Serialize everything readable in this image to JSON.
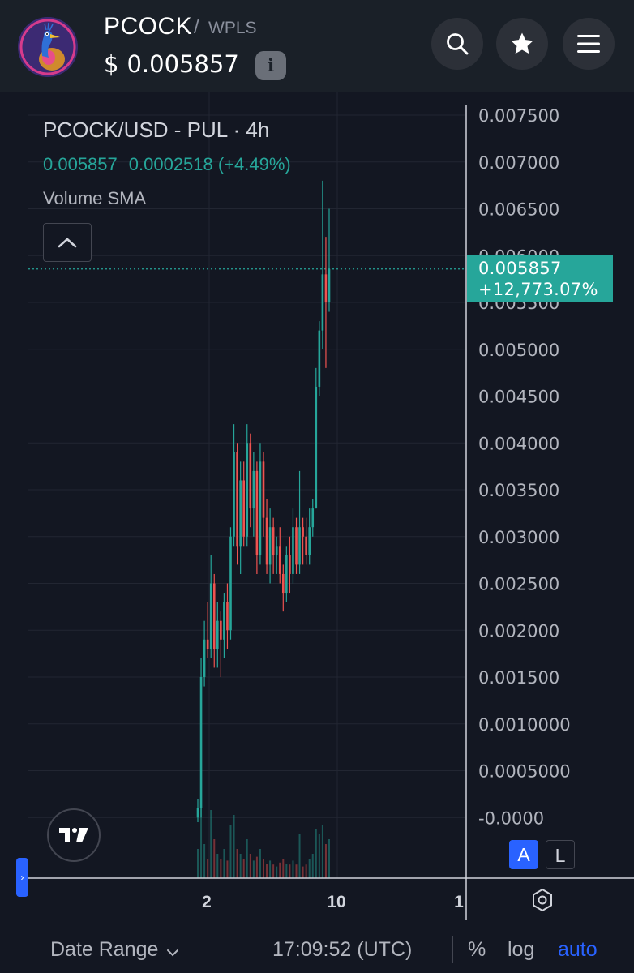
{
  "header": {
    "symbol": "PCOCK",
    "separator": "/",
    "quote": "WPLS",
    "currency": "$",
    "price": "0.005857",
    "info_icon": "i"
  },
  "icons": {
    "search": "search-icon",
    "favorite": "star-icon",
    "menu": "hamburger-menu-icon",
    "collapse": "chevron-up-icon",
    "logo": "tradingview-logo-icon",
    "settings": "hexagon-settings-icon",
    "date_range": "chevron-down-icon"
  },
  "legend": {
    "title": "PCOCK/USD - PUL · 4h",
    "close": "0.005857",
    "change": "0.0002518 (+4.49%)",
    "volume": "Volume SMA"
  },
  "price_tag": {
    "price": "0.005857",
    "change_pct": "+12,773.07%"
  },
  "scale_buttons": {
    "auto": "A",
    "lock": "L"
  },
  "side_tab": "›",
  "toolbar": {
    "date_range": "Date Range",
    "clock": "17:09:52 (UTC)",
    "percent": "%",
    "log": "log",
    "auto": "auto"
  },
  "colors": {
    "up": "#26a69a",
    "down": "#ef5350",
    "background": "#131722",
    "accent": "#2962ff"
  },
  "chart_data": {
    "type": "candlestick",
    "title": "PCOCK/USD - PUL · 4h",
    "y_ticks": [
      "0.007500",
      "0.007000",
      "0.006500",
      "0.006000",
      "0.005500",
      "0.005000",
      "0.004500",
      "0.004000",
      "0.003500",
      "0.003000",
      "0.002500",
      "0.002000",
      "0.001500",
      "0.0010000",
      "0.0005000",
      "-0.0000"
    ],
    "x_ticks": [
      "2",
      "10",
      "1"
    ],
    "ylim": [
      -6e-05,
      0.0077
    ],
    "last_price": 0.005857,
    "candles": [
      {
        "o": 0.0,
        "h": 0.0002,
        "l": -5e-05,
        "c": 0.0001,
        "v": 0.3
      },
      {
        "o": 0.0001,
        "h": 0.0017,
        "l": 0.0,
        "c": 0.0015,
        "v": 0.75
      },
      {
        "o": 0.0015,
        "h": 0.0021,
        "l": 0.0014,
        "c": 0.0019,
        "v": 0.35
      },
      {
        "o": 0.0019,
        "h": 0.0023,
        "l": 0.0017,
        "c": 0.0018,
        "v": 0.2
      },
      {
        "o": 0.0018,
        "h": 0.0028,
        "l": 0.0017,
        "c": 0.0025,
        "v": 0.7
      },
      {
        "o": 0.0025,
        "h": 0.0026,
        "l": 0.0016,
        "c": 0.0018,
        "v": 0.4
      },
      {
        "o": 0.0018,
        "h": 0.0023,
        "l": 0.0016,
        "c": 0.0021,
        "v": 0.25
      },
      {
        "o": 0.0021,
        "h": 0.0022,
        "l": 0.0015,
        "c": 0.0019,
        "v": 0.2
      },
      {
        "o": 0.0019,
        "h": 0.0024,
        "l": 0.0017,
        "c": 0.0023,
        "v": 0.3
      },
      {
        "o": 0.0023,
        "h": 0.0025,
        "l": 0.0018,
        "c": 0.002,
        "v": 0.18
      },
      {
        "o": 0.002,
        "h": 0.0031,
        "l": 0.0019,
        "c": 0.003,
        "v": 0.55
      },
      {
        "o": 0.003,
        "h": 0.0042,
        "l": 0.0029,
        "c": 0.0039,
        "v": 0.65
      },
      {
        "o": 0.0039,
        "h": 0.004,
        "l": 0.0027,
        "c": 0.0029,
        "v": 0.3
      },
      {
        "o": 0.0029,
        "h": 0.0038,
        "l": 0.0026,
        "c": 0.0036,
        "v": 0.25
      },
      {
        "o": 0.0036,
        "h": 0.0038,
        "l": 0.0029,
        "c": 0.003,
        "v": 0.2
      },
      {
        "o": 0.003,
        "h": 0.0042,
        "l": 0.0029,
        "c": 0.004,
        "v": 0.4
      },
      {
        "o": 0.004,
        "h": 0.0041,
        "l": 0.0031,
        "c": 0.0033,
        "v": 0.25
      },
      {
        "o": 0.0033,
        "h": 0.0039,
        "l": 0.003,
        "c": 0.0037,
        "v": 0.18
      },
      {
        "o": 0.0037,
        "h": 0.0038,
        "l": 0.0026,
        "c": 0.0028,
        "v": 0.22
      },
      {
        "o": 0.0028,
        "h": 0.004,
        "l": 0.0027,
        "c": 0.0038,
        "v": 0.3
      },
      {
        "o": 0.0038,
        "h": 0.0039,
        "l": 0.003,
        "c": 0.0032,
        "v": 0.2
      },
      {
        "o": 0.0032,
        "h": 0.0034,
        "l": 0.0026,
        "c": 0.0027,
        "v": 0.15
      },
      {
        "o": 0.0027,
        "h": 0.0033,
        "l": 0.0025,
        "c": 0.0031,
        "v": 0.18
      },
      {
        "o": 0.0031,
        "h": 0.0032,
        "l": 0.0026,
        "c": 0.0028,
        "v": 0.14
      },
      {
        "o": 0.0028,
        "h": 0.003,
        "l": 0.0026,
        "c": 0.0029,
        "v": 0.12
      },
      {
        "o": 0.0029,
        "h": 0.0031,
        "l": 0.0025,
        "c": 0.0026,
        "v": 0.16
      },
      {
        "o": 0.0026,
        "h": 0.0027,
        "l": 0.0022,
        "c": 0.0024,
        "v": 0.2
      },
      {
        "o": 0.0024,
        "h": 0.0029,
        "l": 0.0023,
        "c": 0.0028,
        "v": 0.15
      },
      {
        "o": 0.0028,
        "h": 0.003,
        "l": 0.0024,
        "c": 0.0026,
        "v": 0.14
      },
      {
        "o": 0.0026,
        "h": 0.0033,
        "l": 0.0025,
        "c": 0.0031,
        "v": 0.18
      },
      {
        "o": 0.0031,
        "h": 0.0032,
        "l": 0.0026,
        "c": 0.0027,
        "v": 0.14
      },
      {
        "o": 0.0027,
        "h": 0.0037,
        "l": 0.0026,
        "c": 0.0031,
        "v": 0.45
      },
      {
        "o": 0.0031,
        "h": 0.0032,
        "l": 0.0027,
        "c": 0.003,
        "v": 0.12
      },
      {
        "o": 0.003,
        "h": 0.0032,
        "l": 0.0027,
        "c": 0.0028,
        "v": 0.14
      },
      {
        "o": 0.0028,
        "h": 0.0033,
        "l": 0.0027,
        "c": 0.0031,
        "v": 0.2
      },
      {
        "o": 0.0031,
        "h": 0.0034,
        "l": 0.003,
        "c": 0.0033,
        "v": 0.25
      },
      {
        "o": 0.0033,
        "h": 0.0048,
        "l": 0.0033,
        "c": 0.0046,
        "v": 0.5
      },
      {
        "o": 0.0046,
        "h": 0.0053,
        "l": 0.0045,
        "c": 0.0052,
        "v": 0.45
      },
      {
        "o": 0.0052,
        "h": 0.0068,
        "l": 0.005,
        "c": 0.0058,
        "v": 0.55
      },
      {
        "o": 0.0058,
        "h": 0.0062,
        "l": 0.0048,
        "c": 0.0055,
        "v": 0.35
      },
      {
        "o": 0.0055,
        "h": 0.0065,
        "l": 0.0054,
        "c": 0.005857,
        "v": 0.4
      }
    ]
  }
}
